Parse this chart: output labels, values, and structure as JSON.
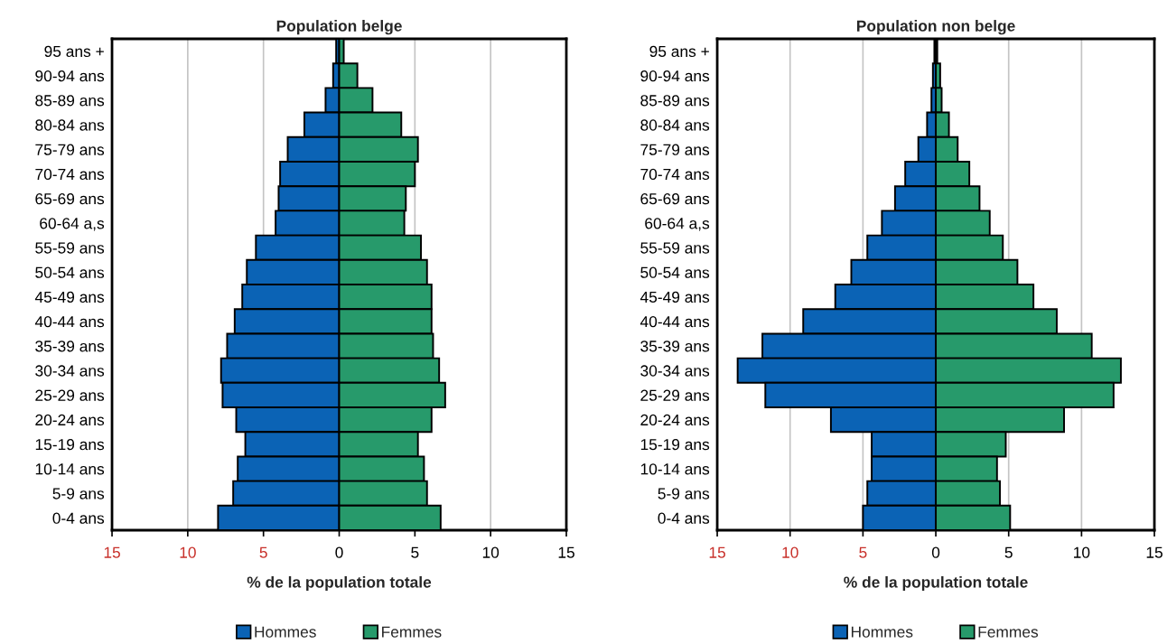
{
  "chart_data": [
    {
      "type": "bar",
      "orientation": "horizontal",
      "stacked": true,
      "title": "Population belge",
      "xlabel": "% de la population totale",
      "categories": [
        "95 ans +",
        "90-94 ans",
        "85-89 ans",
        "80-84 ans",
        "75-79 ans",
        "70-74 ans",
        "65-69 ans",
        "60-64 a,s",
        "55-59 ans",
        "50-54 ans",
        "45-49 ans",
        "40-44 ans",
        "35-39 ans",
        "30-34 ans",
        "25-29 ans",
        "20-24 ans",
        "15-19 ans",
        "10-14 ans",
        "5-9 ans",
        "0-4 ans"
      ],
      "series": [
        {
          "name": "Hommes",
          "color": "#0b63b5",
          "values": [
            -0.2,
            -0.4,
            -0.9,
            -2.3,
            -3.4,
            -3.9,
            -4.0,
            -4.2,
            -5.5,
            -6.1,
            -6.4,
            -6.9,
            -7.4,
            -7.8,
            -7.7,
            -6.8,
            -6.2,
            -6.7,
            -7.0,
            -8.0
          ]
        },
        {
          "name": "Femmes",
          "color": "#279a6b",
          "values": [
            0.3,
            1.2,
            2.2,
            4.1,
            5.2,
            5.0,
            4.4,
            4.3,
            5.4,
            5.8,
            6.1,
            6.1,
            6.2,
            6.6,
            7.0,
            6.1,
            5.2,
            5.6,
            5.8,
            6.7
          ]
        }
      ],
      "xlim": [
        -15,
        15
      ],
      "xticks": [
        {
          "value": -15,
          "label": "15"
        },
        {
          "value": -10,
          "label": "10"
        },
        {
          "value": -5,
          "label": "5"
        },
        0,
        5,
        10,
        15
      ],
      "grid": "x",
      "legend": "bottom"
    },
    {
      "type": "bar",
      "orientation": "horizontal",
      "stacked": true,
      "title": "Population non belge",
      "xlabel": "% de la population totale",
      "categories": [
        "95 ans +",
        "90-94 ans",
        "85-89 ans",
        "80-84 ans",
        "75-79 ans",
        "70-74 ans",
        "65-69 ans",
        "60-64 a,s",
        "55-59 ans",
        "50-54 ans",
        "45-49 ans",
        "40-44 ans",
        "35-39 ans",
        "30-34 ans",
        "25-29 ans",
        "20-24 ans",
        "15-19 ans",
        "10-14 ans",
        "5-9 ans",
        "0-4 ans"
      ],
      "series": [
        {
          "name": "Hommes",
          "color": "#0b63b5",
          "values": [
            -0.1,
            -0.2,
            -0.3,
            -0.6,
            -1.2,
            -2.1,
            -2.8,
            -3.7,
            -4.7,
            -5.8,
            -6.9,
            -9.1,
            -11.9,
            -13.6,
            -11.7,
            -7.2,
            -4.4,
            -4.4,
            -4.7,
            -5.0
          ]
        },
        {
          "name": "Femmes",
          "color": "#279a6b",
          "values": [
            0.1,
            0.3,
            0.4,
            0.9,
            1.5,
            2.3,
            3.0,
            3.7,
            4.6,
            5.6,
            6.7,
            8.3,
            10.7,
            12.7,
            12.2,
            8.8,
            4.8,
            4.2,
            4.4,
            5.1
          ]
        }
      ],
      "xlim": [
        -15,
        15
      ],
      "xticks": [
        {
          "value": -15,
          "label": "15"
        },
        {
          "value": -10,
          "label": "10"
        },
        {
          "value": -5,
          "label": "5"
        },
        0,
        5,
        10,
        15
      ],
      "grid": "x",
      "legend": "bottom"
    }
  ]
}
